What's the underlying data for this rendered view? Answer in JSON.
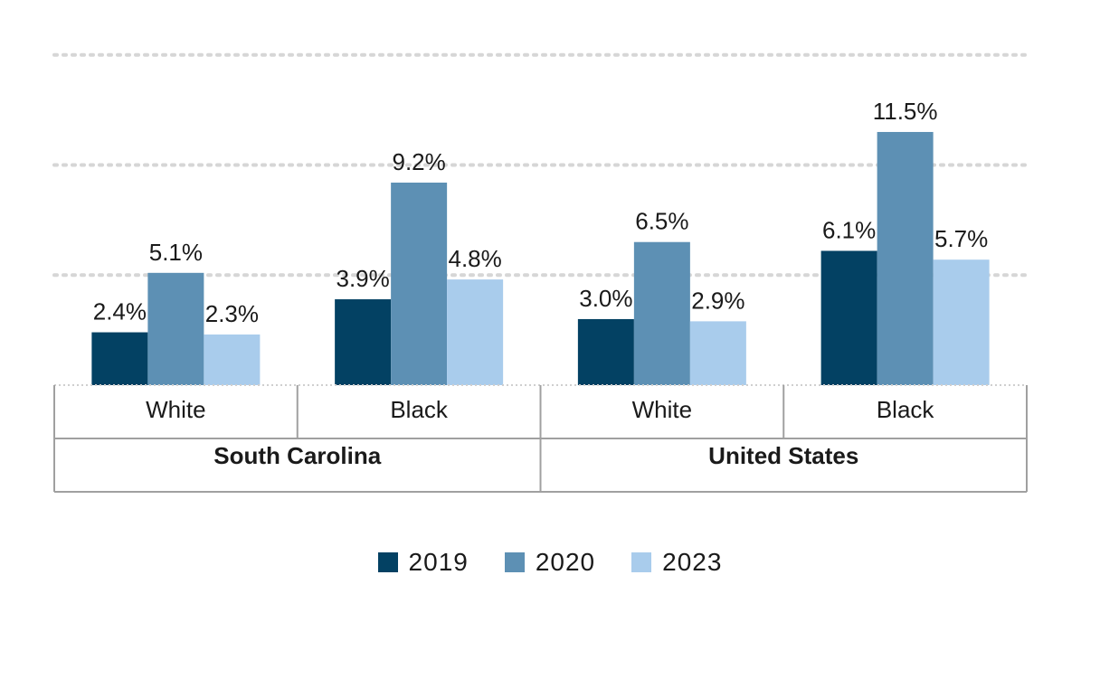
{
  "chart_data": {
    "type": "bar",
    "groups": [
      {
        "name": "South Carolina",
        "categories": [
          "White",
          "Black"
        ]
      },
      {
        "name": "United States",
        "categories": [
          "White",
          "Black"
        ]
      }
    ],
    "categories": [
      "White",
      "Black",
      "White",
      "Black"
    ],
    "series": [
      {
        "name": "2019",
        "color": "#034163",
        "values": [
          2.4,
          3.9,
          3.0,
          6.1
        ],
        "labels": [
          "2.4%",
          "3.9%",
          "3.0%",
          "6.1%"
        ]
      },
      {
        "name": "2020",
        "color": "#5d90b4",
        "values": [
          5.1,
          9.2,
          6.5,
          11.5
        ],
        "labels": [
          "5.1%",
          "9.2%",
          "6.5%",
          "11.5%"
        ]
      },
      {
        "name": "2023",
        "color": "#a9ccec",
        "values": [
          2.3,
          4.8,
          2.9,
          5.7
        ],
        "labels": [
          "2.3%",
          "4.8%",
          "2.9%",
          "5.7%"
        ]
      }
    ],
    "ylim": [
      0,
      15
    ],
    "gridlines": [
      5,
      10,
      15
    ],
    "grid": true,
    "legend_position": "bottom-center"
  }
}
